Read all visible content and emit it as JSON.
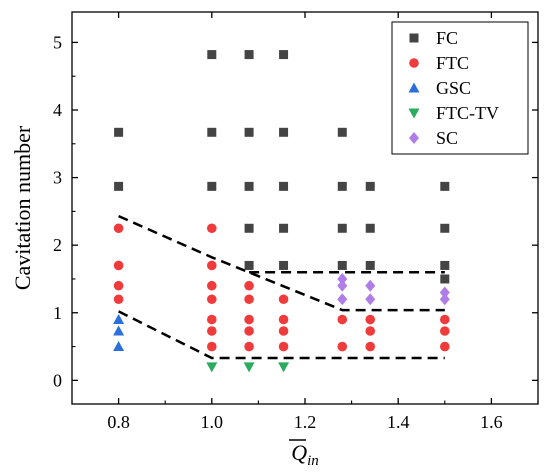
{
  "chart_data": {
    "type": "scatter",
    "title": "",
    "xlabel": "Q",
    "xlabel_sub": "in",
    "ylabel": "Cavitation number",
    "xlim": [
      0.7,
      1.7
    ],
    "ylim": [
      -0.35,
      5.45
    ],
    "xticks": [
      0.8,
      1.0,
      1.2,
      1.4,
      1.6
    ],
    "xtick_labels": [
      "0.8",
      "1.0",
      "1.2",
      "1.4",
      "1.6"
    ],
    "yticks": [
      0,
      1,
      2,
      3,
      4,
      5
    ],
    "ytick_labels": [
      "0",
      "1",
      "2",
      "3",
      "4",
      "5"
    ],
    "grid": false,
    "legend_position": "top-right",
    "series": [
      {
        "name": "FC",
        "marker": "square",
        "color": "#444444",
        "points": [
          [
            0.8,
            3.67
          ],
          [
            0.8,
            2.87
          ],
          [
            1.0,
            4.82
          ],
          [
            1.0,
            3.67
          ],
          [
            1.0,
            2.87
          ],
          [
            1.08,
            4.82
          ],
          [
            1.08,
            3.67
          ],
          [
            1.08,
            2.87
          ],
          [
            1.08,
            2.25
          ],
          [
            1.08,
            1.7
          ],
          [
            1.154,
            4.82
          ],
          [
            1.154,
            3.67
          ],
          [
            1.154,
            2.87
          ],
          [
            1.154,
            2.25
          ],
          [
            1.154,
            1.7
          ],
          [
            1.28,
            3.67
          ],
          [
            1.28,
            2.87
          ],
          [
            1.28,
            2.25
          ],
          [
            1.28,
            1.7
          ],
          [
            1.34,
            2.87
          ],
          [
            1.34,
            2.25
          ],
          [
            1.34,
            1.7
          ],
          [
            1.5,
            2.87
          ],
          [
            1.5,
            2.25
          ],
          [
            1.5,
            1.7
          ],
          [
            1.5,
            1.5
          ]
        ]
      },
      {
        "name": "FTC",
        "marker": "circle",
        "color": "#ef3b3b",
        "points": [
          [
            0.8,
            2.25
          ],
          [
            0.8,
            1.7
          ],
          [
            0.8,
            1.4
          ],
          [
            0.8,
            1.2
          ],
          [
            1.0,
            2.25
          ],
          [
            1.0,
            1.7
          ],
          [
            1.0,
            1.4
          ],
          [
            1.0,
            1.2
          ],
          [
            1.0,
            0.9
          ],
          [
            1.0,
            0.73
          ],
          [
            1.0,
            0.5
          ],
          [
            1.08,
            1.4
          ],
          [
            1.08,
            1.2
          ],
          [
            1.08,
            0.9
          ],
          [
            1.08,
            0.73
          ],
          [
            1.08,
            0.5
          ],
          [
            1.154,
            1.2
          ],
          [
            1.154,
            0.9
          ],
          [
            1.154,
            0.73
          ],
          [
            1.154,
            0.5
          ],
          [
            1.28,
            0.9
          ],
          [
            1.28,
            0.5
          ],
          [
            1.34,
            0.9
          ],
          [
            1.34,
            0.73
          ],
          [
            1.34,
            0.5
          ],
          [
            1.5,
            0.9
          ],
          [
            1.5,
            0.73
          ],
          [
            1.5,
            0.5
          ]
        ]
      },
      {
        "name": "GSC",
        "marker": "triangle-up",
        "color": "#2a6fdb",
        "points": [
          [
            0.8,
            0.9
          ],
          [
            0.8,
            0.73
          ],
          [
            0.8,
            0.5
          ]
        ]
      },
      {
        "name": "FTC-TV",
        "marker": "triangle-down",
        "color": "#2bab5f",
        "points": [
          [
            1.0,
            0.2
          ],
          [
            1.08,
            0.2
          ],
          [
            1.154,
            0.2
          ]
        ]
      },
      {
        "name": "SC",
        "marker": "diamond",
        "color": "#b07ce8",
        "points": [
          [
            1.28,
            1.5
          ],
          [
            1.28,
            1.4
          ],
          [
            1.28,
            1.2
          ],
          [
            1.34,
            1.4
          ],
          [
            1.34,
            1.2
          ],
          [
            1.5,
            1.3
          ],
          [
            1.5,
            1.2
          ]
        ]
      }
    ],
    "boundary_lines": [
      [
        [
          0.8,
          2.43
        ],
        [
          1.0,
          1.82
        ],
        [
          1.28,
          1.04
        ],
        [
          1.5,
          1.04
        ]
      ],
      [
        [
          1.08,
          1.6
        ],
        [
          1.5,
          1.6
        ]
      ],
      [
        [
          0.8,
          1.02
        ],
        [
          1.0,
          0.33
        ],
        [
          1.5,
          0.33
        ]
      ]
    ]
  }
}
